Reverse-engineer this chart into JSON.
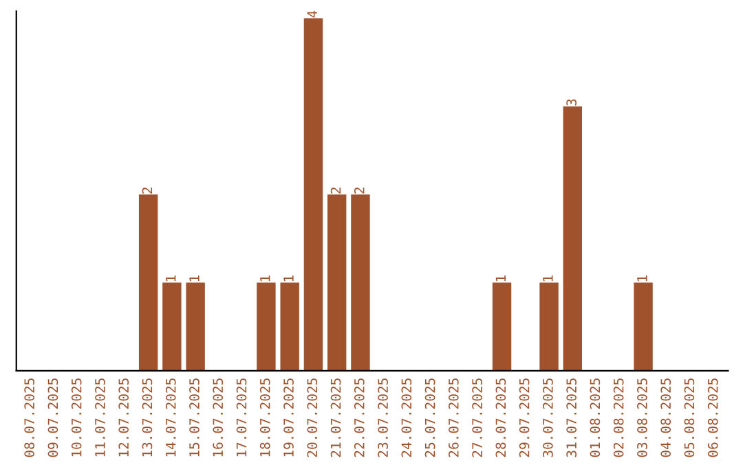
{
  "chart_data": {
    "type": "bar",
    "categories": [
      "08.07.2025",
      "09.07.2025",
      "10.07.2025",
      "11.07.2025",
      "12.07.2025",
      "13.07.2025",
      "14.07.2025",
      "15.07.2025",
      "16.07.2025",
      "17.07.2025",
      "18.07.2025",
      "19.07.2025",
      "20.07.2025",
      "21.07.2025",
      "22.07.2025",
      "23.07.2025",
      "24.07.2025",
      "25.07.2025",
      "26.07.2025",
      "27.07.2025",
      "28.07.2025",
      "29.07.2025",
      "30.07.2025",
      "31.07.2025",
      "01.08.2025",
      "02.08.2025",
      "03.08.2025",
      "04.08.2025",
      "05.08.2025",
      "06.08.2025"
    ],
    "values": [
      0,
      0,
      0,
      0,
      0,
      2,
      1,
      1,
      0,
      0,
      1,
      1,
      4,
      2,
      2,
      0,
      0,
      0,
      0,
      0,
      1,
      0,
      1,
      3,
      0,
      0,
      1,
      0,
      0,
      0
    ],
    "value_labels": [
      null,
      null,
      null,
      null,
      null,
      "2",
      "1",
      "1",
      null,
      null,
      "1",
      "1",
      "4",
      "2",
      "2",
      null,
      null,
      null,
      null,
      null,
      "1",
      null,
      "1",
      "3",
      null,
      null,
      "1",
      null,
      null,
      null
    ],
    "color": "#a0522d",
    "tick_labels": "x",
    "grid": false,
    "legend": false
  }
}
